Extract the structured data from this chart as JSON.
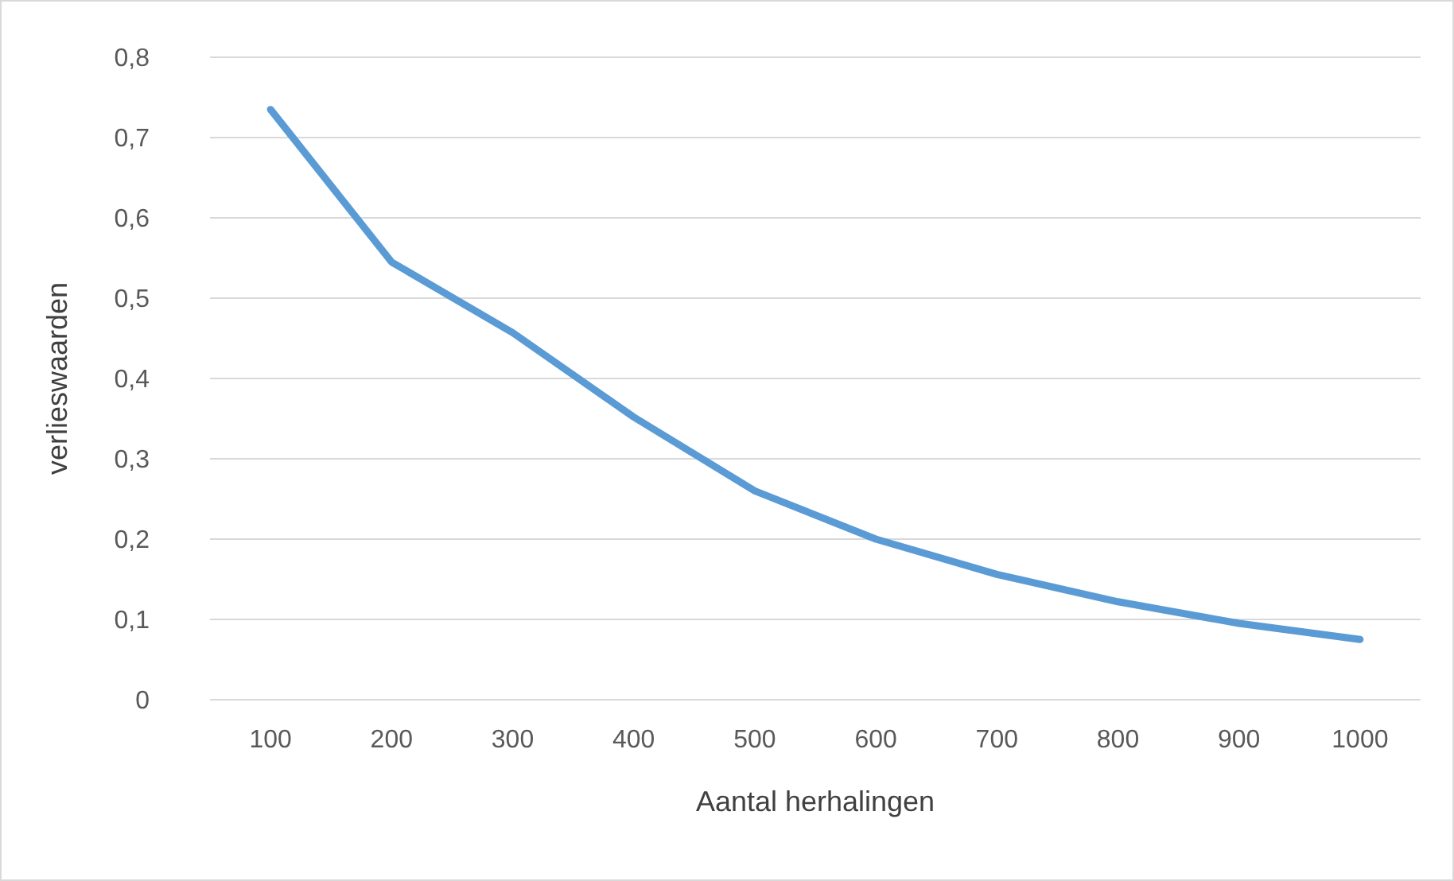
{
  "chart_data": {
    "type": "line",
    "xlabel": "Aantal herhalingen",
    "ylabel": "verlieswaarden",
    "categories": [
      "100",
      "200",
      "300",
      "400",
      "500",
      "600",
      "700",
      "800",
      "900",
      "1000"
    ],
    "series": [
      {
        "color": "#5b9bd5",
        "values": [
          0.735,
          0.545,
          0.457,
          0.352,
          0.26,
          0.2,
          0.156,
          0.122,
          0.095,
          0.075
        ]
      }
    ],
    "ylim": [
      0,
      0.8
    ],
    "yticks": [
      0,
      {
        "value": 0.1,
        "label": "0,1"
      },
      {
        "value": 0.2,
        "label": "0,2"
      },
      {
        "value": 0.3,
        "label": "0,3"
      },
      {
        "value": 0.4,
        "label": "0,4"
      },
      {
        "value": 0.5,
        "label": "0,5"
      },
      {
        "value": 0.6,
        "label": "0,6"
      },
      {
        "value": 0.7,
        "label": "0,7"
      },
      {
        "value": 0.8,
        "label": "0,8"
      }
    ],
    "grid": "y",
    "marker": "none",
    "line_style": "solid"
  }
}
